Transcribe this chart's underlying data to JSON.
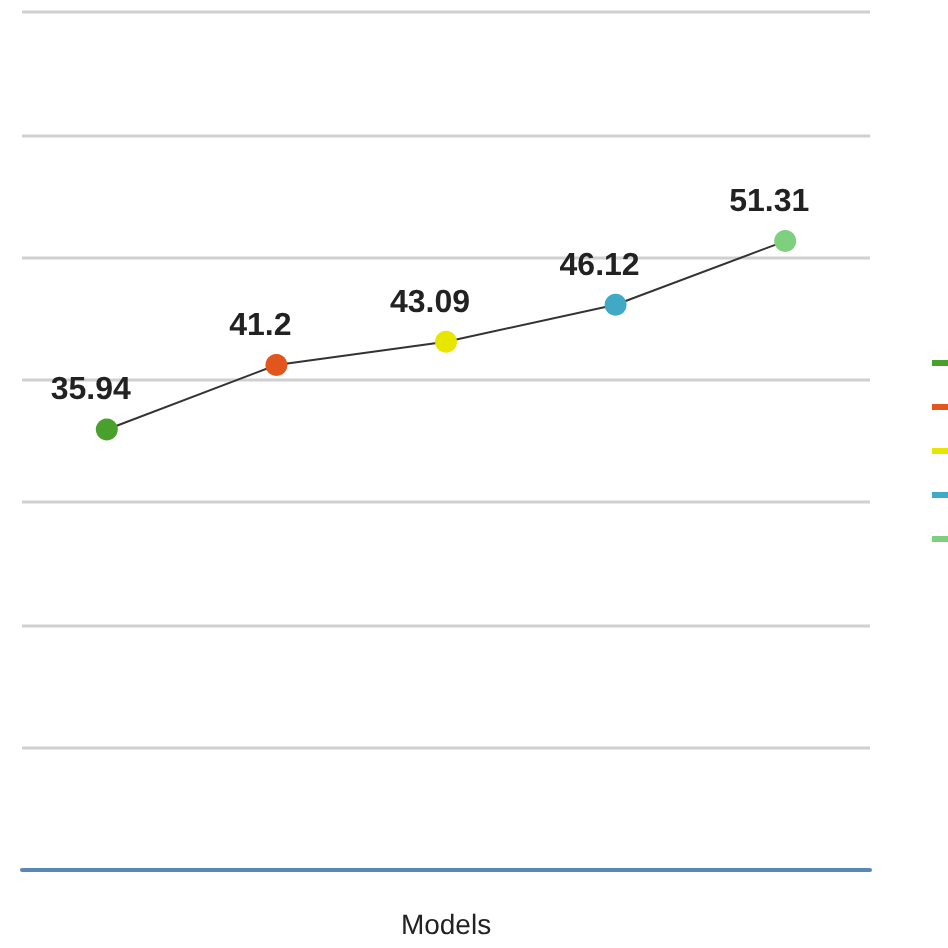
{
  "chart_data": {
    "type": "line",
    "xlabel": "Models",
    "categories": [
      null,
      null,
      null,
      null,
      null
    ],
    "series": [
      {
        "color": "#333333",
        "colors": [
          "#4aa02c",
          "#e2561e",
          "#e6e600",
          "#3fa9c6",
          "#7ed07e"
        ],
        "values": [
          35.94,
          41.2,
          43.09,
          46.12,
          51.31
        ]
      }
    ],
    "ylim": [
      0,
      70
    ],
    "yticks": [
      {
        "value": 0,
        "label": null
      },
      {
        "value": 10,
        "label": null
      },
      {
        "value": 20,
        "label": null
      },
      {
        "value": 30,
        "label": null
      },
      {
        "value": 40,
        "label": null
      },
      {
        "value": 50,
        "label": null
      },
      {
        "value": 60,
        "label": null
      },
      {
        "value": 70,
        "label": null
      }
    ],
    "grid": "y",
    "data_labels": true,
    "marker": "circle"
  }
}
